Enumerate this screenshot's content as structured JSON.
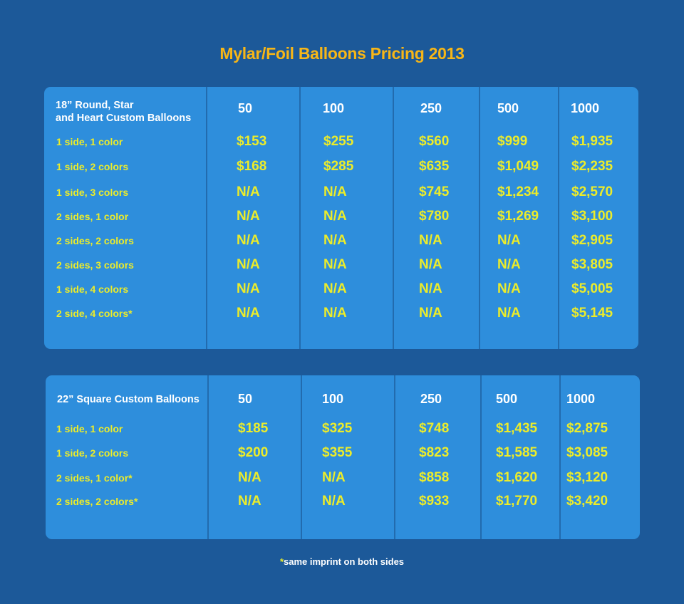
{
  "title": "Mylar/Foil Balloons Pricing 2013",
  "tables": [
    {
      "header_line1": "18” Round, Star",
      "header_line2": "and Heart Custom Balloons",
      "quantities": [
        "50",
        "100",
        "250",
        "500",
        "1000"
      ],
      "rows": [
        {
          "label": "1 side, 1 color",
          "prices": [
            "$153",
            "$255",
            "$560",
            "$999",
            "$1,935"
          ]
        },
        {
          "label": "1 side, 2 colors",
          "prices": [
            "$168",
            "$285",
            "$635",
            "$1,049",
            "$2,235"
          ]
        },
        {
          "label": "1 side, 3 colors",
          "prices": [
            "N/A",
            "N/A",
            "$745",
            "$1,234",
            "$2,570"
          ]
        },
        {
          "label": "2 sides, 1 color",
          "prices": [
            "N/A",
            "N/A",
            "$780",
            "$1,269",
            "$3,100"
          ]
        },
        {
          "label": "2 sides, 2 colors",
          "prices": [
            "N/A",
            "N/A",
            "N/A",
            "N/A",
            "$2,905"
          ]
        },
        {
          "label": "2 sides, 3 colors",
          "prices": [
            "N/A",
            "N/A",
            "N/A",
            "N/A",
            "$3,805"
          ]
        },
        {
          "label": "1 side, 4 colors",
          "prices": [
            "N/A",
            "N/A",
            "N/A",
            "N/A",
            "$5,005"
          ]
        },
        {
          "label": "2 side, 4 colors*",
          "prices": [
            "N/A",
            "N/A",
            "N/A",
            "N/A",
            "$5,145"
          ]
        }
      ]
    },
    {
      "header_line1": "22” Square Custom Balloons",
      "quantities": [
        "50",
        "100",
        "250",
        "500",
        "1000"
      ],
      "rows": [
        {
          "label": "1 side, 1 color",
          "prices": [
            "$185",
            "$325",
            "$748",
            "$1,435",
            "$2,875"
          ]
        },
        {
          "label": "1 side, 2 colors",
          "prices": [
            "$200",
            "$355",
            "$823",
            "$1,585",
            "$3,085"
          ]
        },
        {
          "label": "2 sides, 1 color*",
          "prices": [
            "N/A",
            "N/A",
            "$858",
            "$1,620",
            "$3,120"
          ]
        },
        {
          "label": "2 sides, 2 colors*",
          "prices": [
            "N/A",
            "N/A",
            "$933",
            "$1,770",
            "$3,420"
          ]
        }
      ]
    }
  ],
  "footnote": {
    "star": "*",
    "text": "same imprint on both sides"
  }
}
